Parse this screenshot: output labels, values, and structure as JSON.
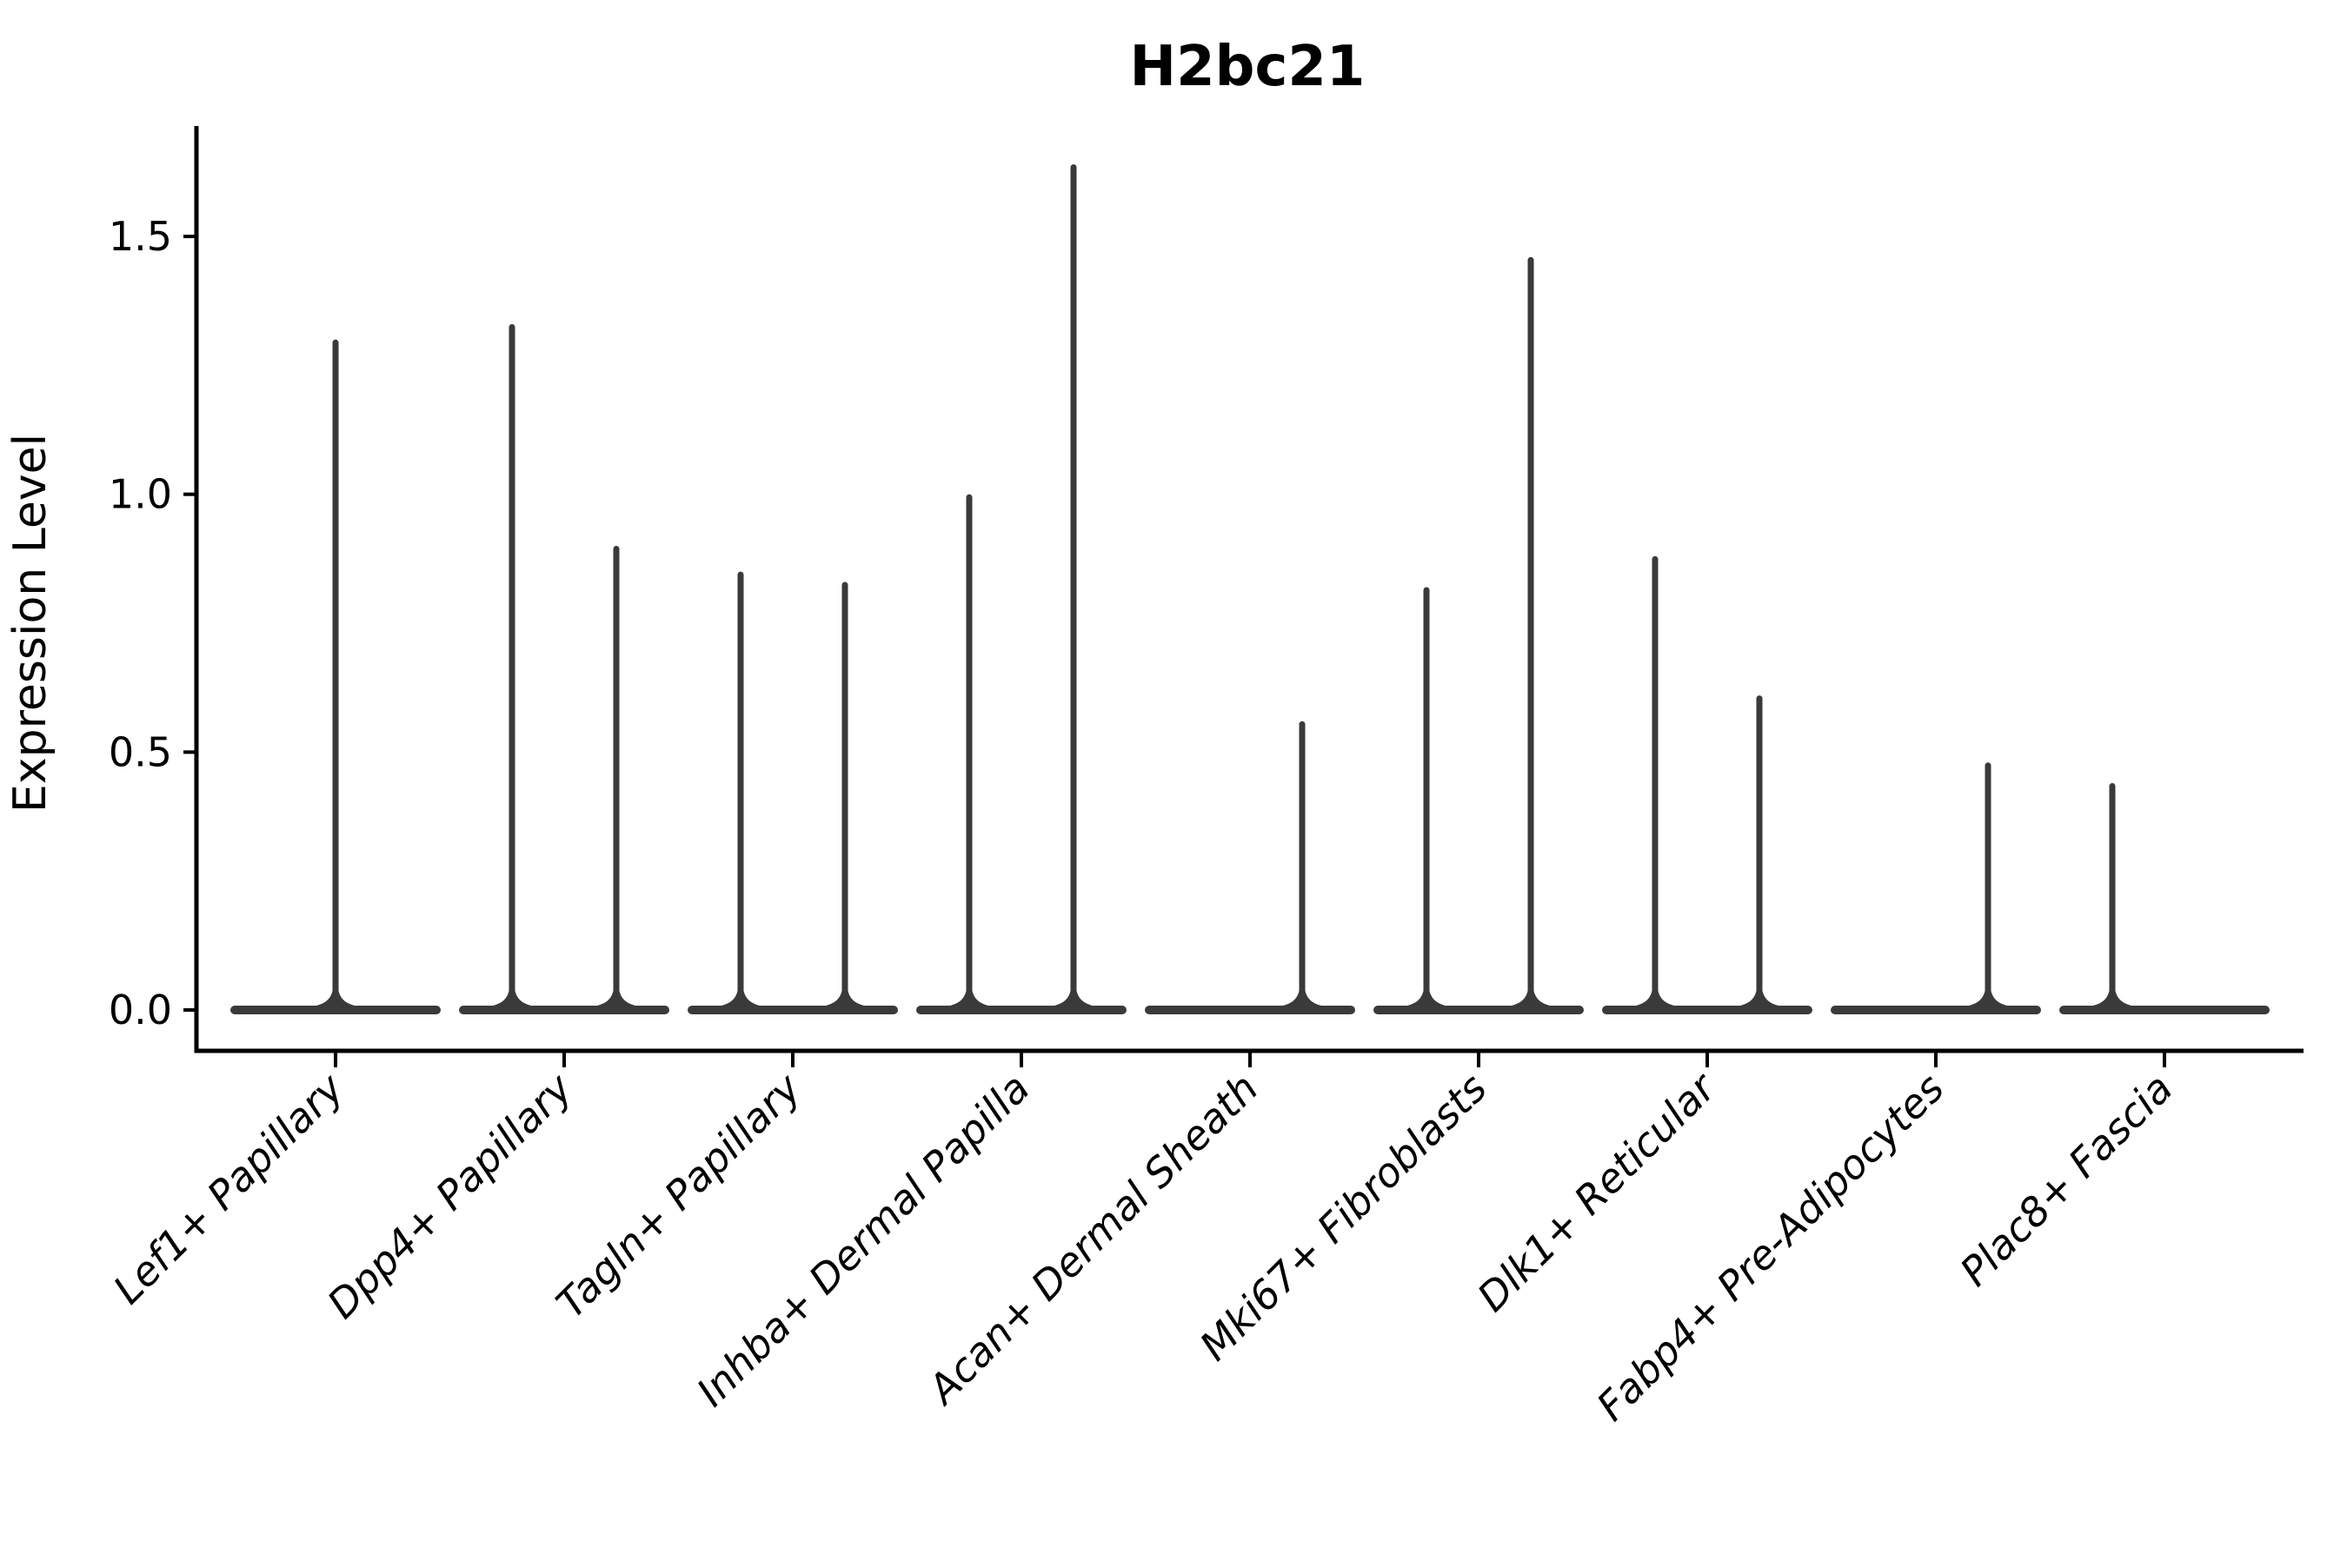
{
  "title": "H2bc21",
  "y_axis": {
    "label": "Expression Level",
    "tick_labels": [
      "0.0",
      "0.5",
      "1.0",
      "1.5"
    ],
    "tick_values": [
      0.0,
      0.5,
      1.0,
      1.5
    ]
  },
  "x_axis": {
    "labels": [
      "Lef1+ Papillary",
      "Dpp4+ Papillary",
      "Tagln+ Papillary",
      "Inhba+ Dermal Papilla",
      "Acan+ Dermal Sheath",
      "Mki67+ Fibroblasts",
      "Dlk1+ Reticular",
      "Fabp4+ Pre-Adipocytes",
      "Plac8+ Fascia"
    ]
  },
  "colors": {
    "violin": "#3a3a3a",
    "axis": "#000000",
    "text": "#000000",
    "background": "#ffffff"
  },
  "chart_data": {
    "type": "violin",
    "title": "H2bc21",
    "xlabel": "",
    "ylabel": "Expression Level",
    "ylim": [
      -0.08,
      1.71
    ],
    "yticks": [
      0.0,
      0.5,
      1.0,
      1.5
    ],
    "grid": false,
    "legend_position": "none",
    "description": "Collapsed violins: wide flat density at 0 with a thin spike up to the maximum expression value; categories show one centered violin or two side-by-side (split) violins",
    "categories": [
      "Lef1+ Papillary",
      "Dpp4+ Papillary",
      "Tagln+ Papillary",
      "Inhba+ Dermal Papilla",
      "Acan+ Dermal Sheath",
      "Mki67+ Fibroblasts",
      "Dlk1+ Reticular",
      "Fabp4+ Pre-Adipocytes",
      "Plac8+ Fascia"
    ],
    "violins": [
      {
        "category": "Lef1+ Papillary",
        "spikes": [
          {
            "position": "center",
            "max_expression": 1.3
          }
        ]
      },
      {
        "category": "Dpp4+ Papillary",
        "spikes": [
          {
            "position": "left",
            "max_expression": 1.33
          },
          {
            "position": "right",
            "max_expression": 0.9
          }
        ]
      },
      {
        "category": "Tagln+ Papillary",
        "spikes": [
          {
            "position": "left",
            "max_expression": 0.85
          },
          {
            "position": "right",
            "max_expression": 0.83
          }
        ]
      },
      {
        "category": "Inhba+ Dermal Papilla",
        "spikes": [
          {
            "position": "left",
            "max_expression": 1.0
          },
          {
            "position": "right",
            "max_expression": 1.64
          }
        ]
      },
      {
        "category": "Acan+ Dermal Sheath",
        "spikes": [
          {
            "position": "left",
            "max_expression": 0.0
          },
          {
            "position": "right",
            "max_expression": 0.56
          }
        ]
      },
      {
        "category": "Mki67+ Fibroblasts",
        "spikes": [
          {
            "position": "left",
            "max_expression": 0.82
          },
          {
            "position": "right",
            "max_expression": 1.46
          }
        ]
      },
      {
        "category": "Dlk1+ Reticular",
        "spikes": [
          {
            "position": "left",
            "max_expression": 0.88
          },
          {
            "position": "right",
            "max_expression": 0.61
          }
        ]
      },
      {
        "category": "Fabp4+ Pre-Adipocytes",
        "spikes": [
          {
            "position": "left",
            "max_expression": 0.0
          },
          {
            "position": "right",
            "max_expression": 0.48
          }
        ]
      },
      {
        "category": "Plac8+ Fascia",
        "spikes": [
          {
            "position": "left",
            "max_expression": 0.44
          },
          {
            "position": "right",
            "max_expression": 0.0
          }
        ]
      }
    ]
  }
}
